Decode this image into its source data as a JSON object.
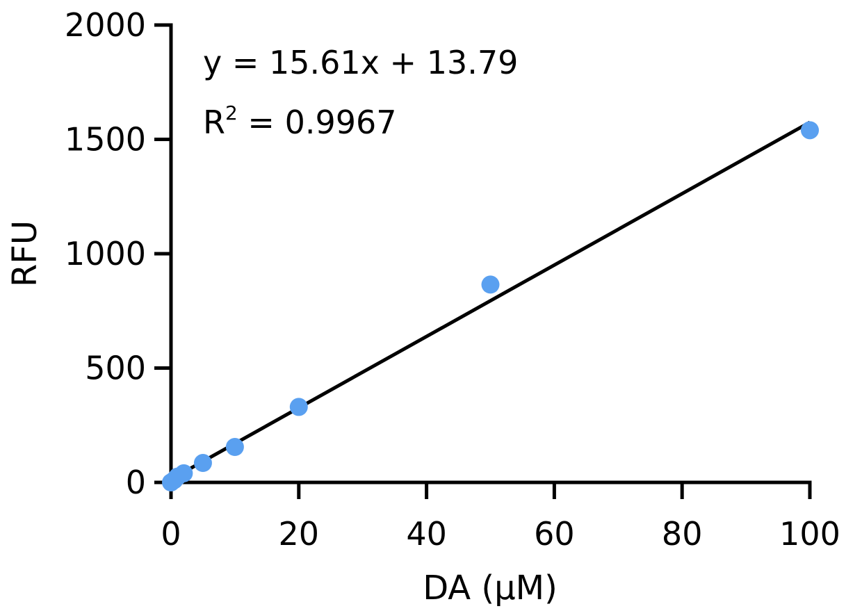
{
  "chart_data": {
    "type": "scatter",
    "xlabel": "DA (µM)",
    "ylabel": "RFU",
    "xlim": [
      0,
      100
    ],
    "ylim": [
      0,
      2000
    ],
    "xticks": [
      0,
      20,
      40,
      60,
      80,
      100
    ],
    "yticks": [
      0,
      500,
      1000,
      1500,
      2000
    ],
    "grid": false,
    "point_color": "#5aa0f0",
    "line_color": "#000000",
    "series": [
      {
        "x": [
          0,
          0.5,
          1,
          2,
          5,
          10,
          20,
          50,
          100
        ],
        "y": [
          0,
          10,
          25,
          40,
          85,
          155,
          330,
          865,
          1540
        ]
      }
    ],
    "fit": {
      "slope": 15.61,
      "intercept": 13.79,
      "equation": "y = 15.61x + 13.79",
      "r2_prefix": "R",
      "r2_sup": "2",
      "r2_value": " = 0.9967"
    }
  }
}
